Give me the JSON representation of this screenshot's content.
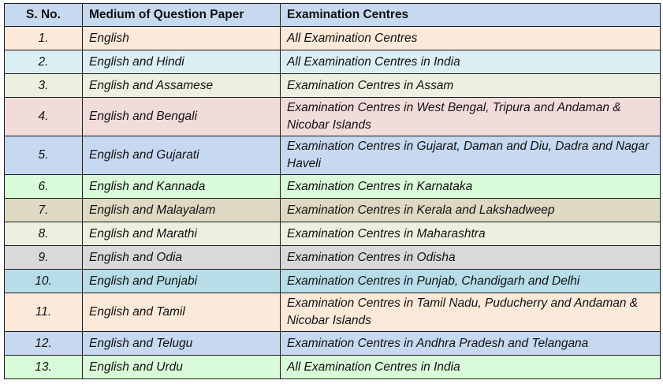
{
  "table": {
    "headers": [
      "S. No.",
      "Medium of Question Paper",
      "Examination Centres"
    ],
    "rows": [
      {
        "sno": "1.",
        "medium": "English",
        "centres": "All Examination Centres",
        "color": "#fde9d9"
      },
      {
        "sno": "2.",
        "medium": "English and Hindi",
        "centres": "All Examination Centres in India",
        "color": "#dbeef4"
      },
      {
        "sno": "3.",
        "medium": "English and Assamese",
        "centres": "Examination Centres in Assam",
        "color": "#ebf1de"
      },
      {
        "sno": "4.",
        "medium": "English and Bengali",
        "centres": "Examination Centres in West Bengal, Tripura and Andaman & Nicobar Islands",
        "color": "#f2dcdb"
      },
      {
        "sno": "5.",
        "medium": "English and Gujarati",
        "centres": "Examination Centres in Gujarat, Daman and Diu, Dadra and Nagar Haveli",
        "color": "#c6d9f0"
      },
      {
        "sno": "6.",
        "medium": "English and Kannada",
        "centres": "Examination Centres in Karnataka",
        "color": "#d9fbd9"
      },
      {
        "sno": "7.",
        "medium": "English and Malayalam",
        "centres": "Examination Centres in Kerala and Lakshadweep",
        "color": "#ddd9c3"
      },
      {
        "sno": "8.",
        "medium": "English and Marathi",
        "centres": "Examination Centres in Maharashtra",
        "color": "#ebf1de"
      },
      {
        "sno": "9.",
        "medium": "English and Odia",
        "centres": "Examination Centres in Odisha",
        "color": "#d9d9d9"
      },
      {
        "sno": "10.",
        "medium": "English and Punjabi",
        "centres": "Examination Centres in Punjab, Chandigarh and Delhi",
        "color": "#b7dde8"
      },
      {
        "sno": "11.",
        "medium": "English and Tamil",
        "centres": "Examination Centres in Tamil Nadu, Puducherry and Andaman & Nicobar Islands",
        "color": "#fde9d9"
      },
      {
        "sno": "12.",
        "medium": "English and Telugu",
        "centres": "Examination Centres in Andhra Pradesh and Telangana",
        "color": "#c6d9f0"
      },
      {
        "sno": "13.",
        "medium": "English and Urdu",
        "centres": "All Examination Centres  in India",
        "color": "#d9fbd9"
      }
    ]
  }
}
